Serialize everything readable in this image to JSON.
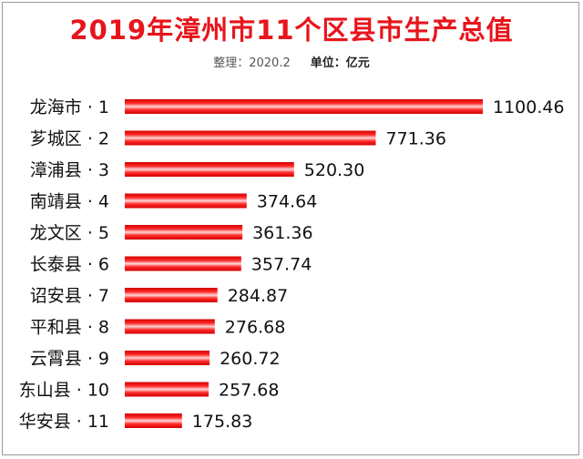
{
  "header": {
    "title": "2019年漳州市11个区县市生产总值",
    "note": "整理：2020.2",
    "unit": "单位：亿元"
  },
  "colors": {
    "title": "#e8141c",
    "bar_dark": "#d40000",
    "bar_mid": "#ff2a2a",
    "bar_highlight": "#ffd6d6"
  },
  "chart_data": {
    "type": "bar",
    "orientation": "horizontal",
    "title": "2019年漳州市11个区县市生产总值",
    "unit": "亿元",
    "categories": [
      "龙海市 · 1",
      "芗城区 · 2",
      "漳浦县 · 3",
      "南靖县 · 4",
      "龙文区 · 5",
      "长泰县 · 6",
      "诏安县 · 7",
      "平和县 · 8",
      "云霄县 · 9",
      "东山县 · 10",
      "华安县 · 11"
    ],
    "values": [
      1100.46,
      771.36,
      520.3,
      374.64,
      361.36,
      357.74,
      284.87,
      276.68,
      260.72,
      257.68,
      175.83
    ],
    "value_labels": [
      "1100.46",
      "771.36",
      "520.30",
      "374.64",
      "361.36",
      "357.74",
      "284.87",
      "276.68",
      "260.72",
      "257.68",
      "175.83"
    ],
    "xlim": [
      0,
      1100.46
    ],
    "grid": false,
    "legend": "none"
  }
}
